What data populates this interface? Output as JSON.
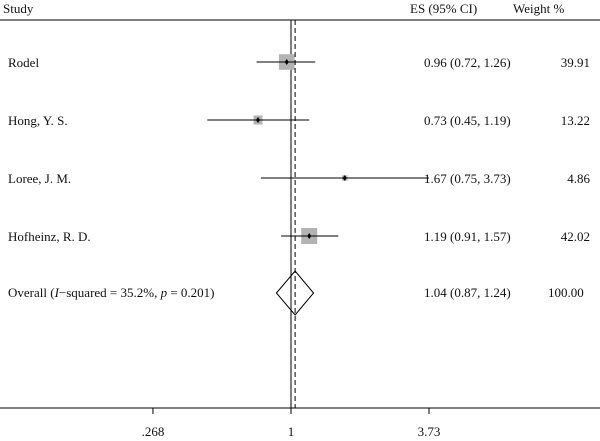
{
  "headers": {
    "study": "Study",
    "es": "ES (95% CI)",
    "weight": "Weight %"
  },
  "overall_label": {
    "prefix": "Overall (",
    "i_italic": "I",
    "mid": "−squared = 35.2%, ",
    "p_italic": "p",
    "suffix": " = 0.201)"
  },
  "chart_data": {
    "type": "forest",
    "title": "",
    "x_scale": "log",
    "x_ticks": [
      {
        "value": 0.268,
        "label": ".268"
      },
      {
        "value": 1,
        "label": "1"
      },
      {
        "value": 3.73,
        "label": "3.73"
      }
    ],
    "null_line": 1,
    "studies": [
      {
        "name": "Rodel",
        "es": 0.96,
        "lo": 0.72,
        "hi": 1.26,
        "weight": 39.91,
        "ci_text": "0.96 (0.72, 1.26)",
        "weight_text": "39.91"
      },
      {
        "name": "Hong, Y. S.",
        "es": 0.73,
        "lo": 0.45,
        "hi": 1.19,
        "weight": 13.22,
        "ci_text": "0.73 (0.45, 1.19)",
        "weight_text": "13.22"
      },
      {
        "name": "Loree, J. M.",
        "es": 1.67,
        "lo": 0.75,
        "hi": 3.73,
        "weight": 4.86,
        "ci_text": "1.67 (0.75, 3.73)",
        "weight_text": "4.86"
      },
      {
        "name": "Hofheinz, R. D.",
        "es": 1.19,
        "lo": 0.91,
        "hi": 1.57,
        "weight": 42.02,
        "ci_text": "1.19 (0.91, 1.57)",
        "weight_text": "42.02"
      }
    ],
    "overall": {
      "es": 1.04,
      "lo": 0.87,
      "hi": 1.24,
      "weight": 100.0,
      "ci_text": "1.04 (0.87, 1.24)",
      "weight_text": "100.00"
    },
    "colors": {
      "box": "#b3b3b3",
      "line": "#000000"
    }
  }
}
